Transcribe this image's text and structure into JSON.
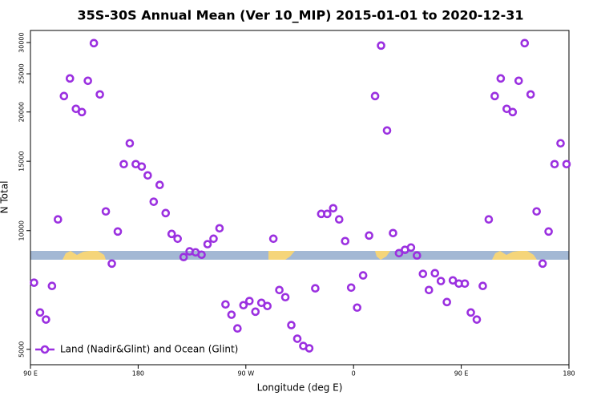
{
  "chart_data": {
    "type": "scatter",
    "title": "35S-30S Annual Mean (Ver 10_MIP)   2015-01-01 to 2020-12-31",
    "xlabel": "Longitude (deg E)",
    "ylabel": "N Total",
    "xlim": [
      90,
      540
    ],
    "ylim": [
      4570,
      32200
    ],
    "ylog": true,
    "xticks": [
      {
        "value": 90,
        "label": "90 E"
      },
      {
        "value": 180,
        "label": "180"
      },
      {
        "value": 270,
        "label": "90 W"
      },
      {
        "value": 360,
        "label": "0"
      },
      {
        "value": 450,
        "label": "90 E"
      },
      {
        "value": 540,
        "label": "180"
      }
    ],
    "yticks": [
      5000,
      10000,
      15000,
      20000,
      25000,
      30000
    ],
    "legend": "lower left",
    "series": [
      {
        "name": "Land (Nadir&Glint) and Ocean (Glint)",
        "color": "#9b30e0",
        "x": [
          93,
          98,
          103,
          108,
          113,
          118,
          123,
          128,
          133,
          138,
          143,
          148,
          153,
          158,
          163,
          168,
          173,
          178,
          183,
          188,
          193,
          198,
          203,
          208,
          213,
          218,
          223,
          228,
          233,
          238,
          243,
          248,
          253,
          258,
          263,
          268,
          273,
          278,
          283,
          288,
          293,
          298,
          303,
          308,
          313,
          318,
          323,
          328,
          333,
          338,
          343,
          348,
          353,
          358,
          363,
          368,
          373,
          378,
          383,
          388,
          393,
          398,
          403,
          408,
          413,
          418,
          423,
          428,
          433,
          438,
          443,
          448,
          453,
          458,
          463,
          468,
          473,
          478,
          483,
          488,
          493,
          498,
          503,
          508,
          513,
          518,
          523,
          528,
          533,
          538
        ],
        "values": [
          7380,
          6200,
          5950,
          7240,
          10680,
          21950,
          24330,
          20370,
          19990,
          24000,
          29900,
          22160,
          11190,
          8250,
          9950,
          14750,
          16660,
          14750,
          14540,
          13810,
          11840,
          13060,
          11080,
          9810,
          9540,
          8570,
          8860,
          8810,
          8690,
          9240,
          9540,
          10140,
          6500,
          6120,
          5650,
          6470,
          6630,
          6230,
          6560,
          6440,
          9540,
          7070,
          6780,
          5760,
          5320,
          5100,
          5030,
          7140,
          11030,
          11030,
          11400,
          10680,
          9410,
          7170,
          6380,
          7700,
          9720,
          21950,
          29480,
          17950,
          9860,
          8770,
          8940,
          9060,
          8650,
          7770,
          7070,
          7800,
          7450,
          6590,
          7480,
          7340,
          7340,
          6200,
          5950,
          7240,
          10680,
          21950,
          24330,
          20370,
          19990,
          24000,
          29900,
          22160,
          11190,
          8250,
          9950,
          14750,
          16660,
          14750
        ]
      }
    ]
  }
}
